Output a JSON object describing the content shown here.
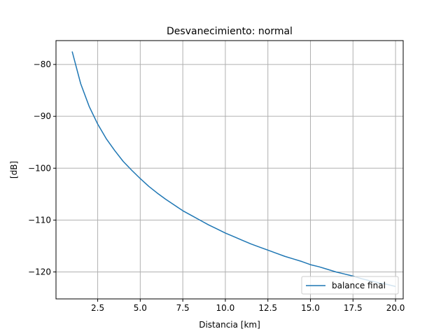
{
  "chart_data": {
    "type": "line",
    "title": "Desvanecimiento: normal",
    "xlabel": "Distancia [km]",
    "ylabel": "[dB]",
    "xlim": [
      0.05,
      20.45
    ],
    "ylim": [
      -125.2,
      -75.4
    ],
    "xticks": [
      2.5,
      5.0,
      7.5,
      10.0,
      12.5,
      15.0,
      17.5,
      20.0
    ],
    "xtick_labels": [
      "2.5",
      "5.0",
      "7.5",
      "10.0",
      "12.5",
      "15.0",
      "17.5",
      "20.0"
    ],
    "yticks": [
      -80,
      -90,
      -100,
      -110,
      -120
    ],
    "ytick_labels": [
      "−80",
      "−90",
      "−100",
      "−110",
      "−120"
    ],
    "grid": true,
    "legend_position": "lower right",
    "colors": {
      "series": "#1f77b4",
      "grid": "#b0b0b0"
    },
    "series": [
      {
        "name": "balance final",
        "x": [
          1.0,
          1.5,
          2.0,
          2.5,
          3.0,
          3.5,
          4.0,
          4.5,
          5.0,
          5.5,
          6.0,
          6.5,
          7.0,
          7.5,
          8.0,
          8.5,
          9.0,
          9.5,
          10.0,
          10.5,
          11.0,
          11.5,
          12.0,
          12.5,
          13.0,
          13.5,
          14.0,
          14.5,
          15.0,
          15.5,
          16.0,
          16.5,
          17.0,
          17.5,
          18.0,
          18.5,
          19.0,
          19.5,
          20.0
        ],
        "y": [
          -77.5,
          -83.7,
          -88.1,
          -91.5,
          -94.3,
          -96.6,
          -98.7,
          -100.4,
          -102.0,
          -103.5,
          -104.8,
          -106.0,
          -107.1,
          -108.2,
          -109.1,
          -110.0,
          -110.9,
          -111.7,
          -112.5,
          -113.2,
          -113.9,
          -114.6,
          -115.2,
          -115.8,
          -116.4,
          -117.0,
          -117.5,
          -118.0,
          -118.6,
          -119.0,
          -119.5,
          -120.0,
          -120.4,
          -120.8,
          -121.3,
          -121.7,
          -122.1,
          -122.4,
          -122.8
        ]
      }
    ]
  }
}
